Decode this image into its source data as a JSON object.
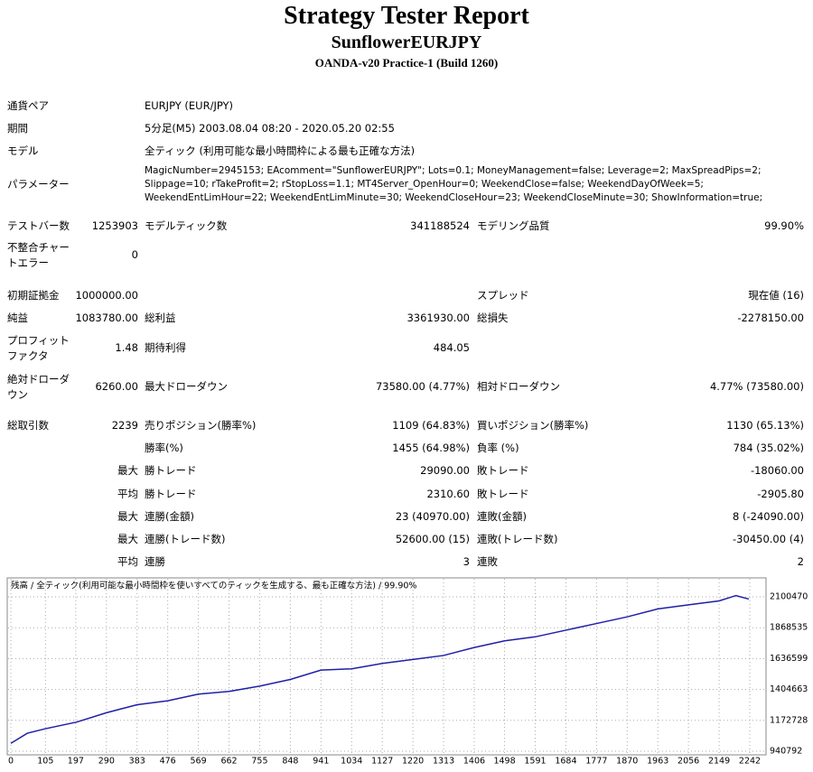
{
  "header": {
    "title": "Strategy Tester Report",
    "subtitle": "SunflowerEURJPY",
    "build": "OANDA-v20 Practice-1 (Build 1260)"
  },
  "info": [
    {
      "label": "通貨ペア",
      "value": [
        "EURJPY (EUR/JPY)"
      ]
    },
    {
      "label": "期間",
      "value": [
        "5分足(M5) 2003.08.04 08:20 - 2020.05.20 02:55"
      ]
    },
    {
      "label": "モデル",
      "value": [
        "全ティック (利用可能な最小時間枠による最も正確な方法)"
      ]
    },
    {
      "label": "パラメーター",
      "value": [
        "MagicNumber=2945153; EAcomment=\"SunflowerEURJPY\"; Lots=0.1; MoneyManagement=false; Leverage=2; MaxSpreadPips=2;",
        "Slippage=10; rTakeProfit=2; rStopLoss=1.1; MT4Server_OpenHour=0; WeekendClose=false; WeekendDayOfWeek=5;",
        "WeekendEntLimHour=22; WeekendEntLimMinute=30; WeekendCloseHour=23; WeekendCloseMinute=30; ShowInformation=true;"
      ]
    }
  ],
  "stats": [
    {
      "c1": [
        "テストバー数"
      ],
      "v1": "1253903",
      "c2": "モデルティック数",
      "v2": "341188524",
      "c3": "モデリング品質",
      "v3": "99.90%"
    },
    {
      "c1": [
        "不整合チャー",
        "トエラー"
      ],
      "v1": "0"
    },
    {
      "c1": [
        "初期証拠金"
      ],
      "v1": "1000000.00",
      "c3": "スプレッド",
      "v3": "現在値 (16)"
    },
    {
      "c1": [
        "純益"
      ],
      "v1": "1083780.00",
      "c2": "総利益",
      "v2": "3361930.00",
      "c3": "総損失",
      "v3": "-2278150.00"
    },
    {
      "c1": [
        "プロフィット",
        "ファクタ"
      ],
      "v1": "1.48",
      "c2": "期待利得",
      "v2": "484.05"
    },
    {
      "c1": [
        "絶対ドローダ",
        "ウン"
      ],
      "v1": "6260.00",
      "c2": "最大ドローダウン",
      "v2": "73580.00 (4.77%)",
      "c3": "相対ドローダウン",
      "v3": "4.77% (73580.00)"
    },
    {
      "c1": [
        "総取引数"
      ],
      "v1": "2239",
      "c2": "売りポジション(勝率%)",
      "v2": "1109 (64.83%)",
      "c3": "買いポジション(勝率%)",
      "v3": "1130 (65.13%)"
    },
    {
      "c2": "勝率(%)",
      "v2": "1455 (64.98%)",
      "c3": "負率 (%)",
      "v3": "784 (35.02%)"
    },
    {
      "v1": "最大",
      "c2": "勝トレード",
      "v2": "29090.00",
      "c3": "敗トレード",
      "v3": "-18060.00"
    },
    {
      "v1": "平均",
      "c2": "勝トレード",
      "v2": "2310.60",
      "c3": "敗トレード",
      "v3": "-2905.80"
    },
    {
      "v1": "最大",
      "c2": "連勝(金額)",
      "v2": "23 (40970.00)",
      "c3": "連敗(金額)",
      "v3": "8 (-24090.00)"
    },
    {
      "v1": "最大",
      "c2": "連勝(トレード数)",
      "v2": "52600.00 (15)",
      "c3": "連敗(トレード数)",
      "v3": "-30450.00 (4)"
    },
    {
      "v1": "平均",
      "c2": "連勝",
      "v2": "3",
      "c3": "連敗",
      "v3": "2"
    }
  ],
  "chart_data": {
    "type": "line",
    "title": "残高 / 全ティック(利用可能な最小時間枠を使いすべてのティックを生成する、最も正確な方法) / 99.90%",
    "x": [
      0,
      50,
      105,
      200,
      290,
      383,
      476,
      569,
      662,
      755,
      848,
      941,
      1034,
      1127,
      1220,
      1313,
      1406,
      1498,
      1591,
      1684,
      1777,
      1870,
      1963,
      2056,
      2149,
      2200,
      2239
    ],
    "series": [
      {
        "color": "#1f1fa8",
        "values": [
          1000000,
          1076000,
          1110000,
          1160000,
          1230000,
          1290000,
          1320000,
          1370000,
          1390000,
          1430000,
          1480000,
          1550000,
          1560000,
          1600000,
          1630000,
          1660000,
          1720000,
          1770000,
          1800000,
          1850000,
          1900000,
          1950000,
          2010000,
          2040000,
          2070000,
          2110000,
          2083780
        ]
      }
    ],
    "xlim": [
      0,
      2242
    ],
    "ylim": [
      940792,
      2100470
    ],
    "xticks": [
      0,
      105,
      197,
      290,
      383,
      476,
      569,
      662,
      755,
      848,
      941,
      1034,
      1127,
      1220,
      1313,
      1406,
      1498,
      1591,
      1684,
      1777,
      1870,
      1963,
      2056,
      2149,
      2242
    ],
    "yticks": [
      940792,
      1172728,
      1404663,
      1636599,
      1868535,
      2100470
    ],
    "grid": true
  }
}
